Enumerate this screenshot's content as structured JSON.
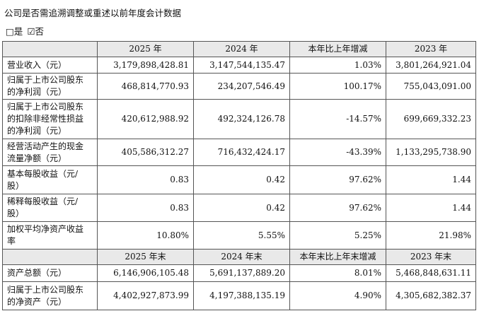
{
  "header": {
    "title": "公司是否需追溯调整或重述以前年度会计数据",
    "options": [
      "□是",
      "☑否"
    ]
  },
  "table": {
    "sections": [
      {
        "columns": [
          "2025 年",
          "2024 年",
          "本年比上年增减",
          "2023 年"
        ],
        "rows": [
          {
            "label": [
              "营业收入（元）"
            ],
            "cells": [
              "3,179,898,428.81",
              "3,147,544,135.47",
              "1.03%",
              "3,801,264,921.04"
            ]
          },
          {
            "label": [
              "归属于上市公司股东",
              "的净利润（元）"
            ],
            "cells": [
              "468,814,770.93",
              "234,207,546.49",
              "100.17%",
              "755,043,091.00"
            ]
          },
          {
            "label": [
              "归属于上市公司股东",
              "的扣除非经常性损益",
              "的净利润（元）"
            ],
            "cells": [
              "420,612,988.92",
              "492,324,126.78",
              "-14.57%",
              "699,669,332.23"
            ]
          },
          {
            "label": [
              "经营活动产生的现金",
              "流量净额（元）"
            ],
            "cells": [
              "405,586,312.27",
              "716,432,424.17",
              "-43.39%",
              "1,133,295,738.90"
            ]
          },
          {
            "label": [
              "基本每股收益（元/",
              "股）"
            ],
            "cells": [
              "0.83",
              "0.42",
              "97.62%",
              "1.44"
            ]
          },
          {
            "label": [
              "稀释每股收益（元/",
              "股）"
            ],
            "cells": [
              "0.83",
              "0.42",
              "97.62%",
              "1.44"
            ]
          },
          {
            "label": [
              "加权平均净资产收益",
              "率"
            ],
            "cells": [
              "10.80%",
              "5.55%",
              "5.25%",
              "21.98%"
            ]
          }
        ]
      },
      {
        "columns": [
          "2025 年末",
          "2024 年末",
          "本年末比上年末增减",
          "2023 年末"
        ],
        "rows": [
          {
            "label": [
              "资产总额（元）"
            ],
            "cells": [
              "6,146,906,105.48",
              "5,691,137,889.20",
              "8.01%",
              "5,468,848,631.11"
            ]
          },
          {
            "label": [
              "归属于上市公司股东",
              "的净资产（元）"
            ],
            "cells": [
              "4,402,927,873.99",
              "4,197,388,135.19",
              "4.90%",
              "4,305,682,382.37"
            ]
          }
        ]
      }
    ]
  }
}
